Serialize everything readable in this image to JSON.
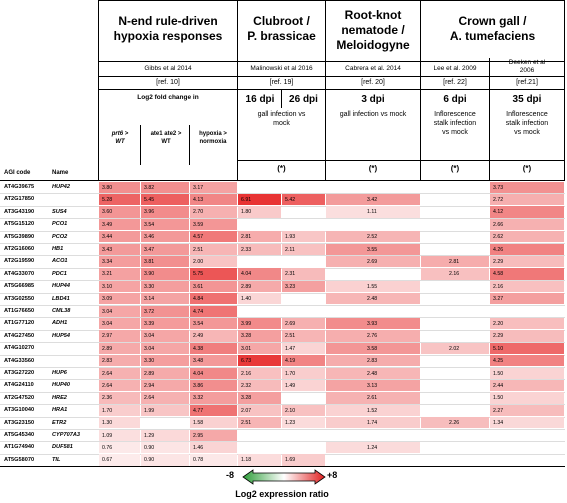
{
  "sections": [
    {
      "title": "N-end rule-driven\nhypoxia responses",
      "citation": "Gibbs et al 2014",
      "ref": "[ref. 10]"
    },
    {
      "title": "Clubroot /\nP. brassicae",
      "citation": "Malinowski et al 2016",
      "ref": "[ref. 19]"
    },
    {
      "title": "Root-knot\nnematode /\nMeloidogyne",
      "citation": "Cabrera et al. 2014",
      "ref": "[ref. 20]"
    },
    {
      "title": "Crown gall /\nA. tumefaciens",
      "citation_a": "Lee et al. 2009",
      "citation_b": "Deeken et al\n2006",
      "ref_a": "[ref. 22]",
      "ref_b": "[ref.21]"
    }
  ],
  "hypoxia": {
    "sublabel": "Log2 fold change in",
    "col1": "prt6 >\nWT",
    "col2": "ate1 ate2 >\nWT",
    "col3": "hypoxia >\nnormoxia"
  },
  "clubroot": {
    "dpi1": "16 dpi",
    "dpi2": "26 dpi",
    "desc": "gall infection vs\nmock"
  },
  "nematode": {
    "dpi": "3 dpi",
    "desc": "gall infection vs mock"
  },
  "crown": {
    "dpi1": "6 dpi",
    "dpi2": "35 dpi",
    "desc1": "Inflorescence\nstalk infection\nvs mock",
    "desc2": "Inflorescence\nstalk infection\nvs mock"
  },
  "star": "(*)",
  "table_header": {
    "code": "AGI code",
    "name": "Name"
  },
  "rows": [
    {
      "code": "AT4G39675",
      "name": "HUP42",
      "v": [
        "3.80",
        "3.82",
        "3.17",
        "",
        "",
        "",
        "",
        "3.73"
      ]
    },
    {
      "code": "AT2G17850",
      "name": "",
      "v": [
        "5.28",
        "5.45",
        "4.13",
        "6.91",
        "5.42",
        "3.42",
        "",
        "2.72"
      ]
    },
    {
      "code": "AT3G43190",
      "name": "SUS4",
      "v": [
        "3.60",
        "3.96",
        "2.70",
        "1.80",
        "",
        "1.11",
        "",
        "4.12"
      ]
    },
    {
      "code": "AT5G15120",
      "name": "PCO1",
      "v": [
        "3.49",
        "3.54",
        "3.59",
        "",
        "",
        "",
        "",
        "2.66"
      ]
    },
    {
      "code": "AT5G39890",
      "name": "PCO2",
      "v": [
        "3.44",
        "3.46",
        "4.57",
        "2.81",
        "1.93",
        "2.52",
        "",
        "2.62"
      ]
    },
    {
      "code": "AT2G16060",
      "name": "HB1",
      "v": [
        "3.43",
        "3.47",
        "2.51",
        "2.33",
        "2.11",
        "3.55",
        "",
        "4.26"
      ]
    },
    {
      "code": "AT2G19590",
      "name": "ACO1",
      "v": [
        "3.34",
        "3.81",
        "2.00",
        "",
        "",
        "2.69",
        "2.81",
        "2.29"
      ]
    },
    {
      "code": "AT4G33070",
      "name": "PDC1",
      "v": [
        "3.21",
        "3.90",
        "5.75",
        "4.04",
        "2.31",
        "",
        "2.16",
        "4.58"
      ]
    },
    {
      "code": "AT5G66985",
      "name": "HUP44",
      "v": [
        "3.10",
        "3.30",
        "3.61",
        "2.89",
        "3.23",
        "1.55",
        "",
        "2.16"
      ]
    },
    {
      "code": "AT3G02550",
      "name": "LBD41",
      "v": [
        "3.09",
        "3.14",
        "4.84",
        "1.40",
        "",
        "2.48",
        "",
        "3.27"
      ]
    },
    {
      "code": "AT1G76650",
      "name": "CML38",
      "v": [
        "3.04",
        "3.72",
        "4.74",
        "",
        "",
        "",
        "",
        ""
      ]
    },
    {
      "code": "AT1G77120",
      "name": "ADH1",
      "v": [
        "3.04",
        "3.39",
        "3.54",
        "3.99",
        "2.69",
        "3.93",
        "",
        "2.20"
      ]
    },
    {
      "code": "AT4G27450",
      "name": "HUP54",
      "v": [
        "2.97",
        "3.04",
        "2.49",
        "3.28",
        "2.51",
        "2.76",
        "",
        "2.29"
      ]
    },
    {
      "code": "AT4G10270",
      "name": "",
      "v": [
        "2.89",
        "3.04",
        "4.38",
        "3.01",
        "1.47",
        "3.58",
        "2.02",
        "5.10"
      ]
    },
    {
      "code": "AT4G33560",
      "name": "",
      "v": [
        "2.83",
        "3.30",
        "3.48",
        "6.73",
        "4.19",
        "2.83",
        "",
        "4.25"
      ]
    },
    {
      "code": "AT3G27220",
      "name": "HUP6",
      "v": [
        "2.64",
        "2.89",
        "4.04",
        "2.16",
        "1.70",
        "2.48",
        "",
        "1.50"
      ]
    },
    {
      "code": "AT4G24110",
      "name": "HUP40",
      "v": [
        "2.64",
        "2.94",
        "3.86",
        "2.32",
        "1.49",
        "3.13",
        "",
        "2.44"
      ]
    },
    {
      "code": "AT2G47520",
      "name": "HRE2",
      "v": [
        "2.36",
        "2.64",
        "3.32",
        "3.28",
        "",
        "2.61",
        "",
        "1.50"
      ]
    },
    {
      "code": "AT3G10040",
      "name": "HRA1",
      "v": [
        "1.70",
        "1.99",
        "4.77",
        "2.07",
        "2.10",
        "1.52",
        "",
        "2.27"
      ]
    },
    {
      "code": "AT3G23150",
      "name": "ETR2",
      "v": [
        "1.30",
        "",
        "1.58",
        "2.51",
        "1.23",
        "1.74",
        "2.26",
        "1.34"
      ]
    },
    {
      "code": "AT5G45340",
      "name": "CYP707A3",
      "v": [
        "1.09",
        "1.29",
        "2.95",
        "",
        "",
        "",
        "",
        ""
      ]
    },
    {
      "code": "AT1G74940",
      "name": "DUF581",
      "v": [
        "0.76",
        "0.90",
        "1.46",
        "",
        "",
        "1.24",
        "",
        ""
      ]
    },
    {
      "code": "AT5G58070",
      "name": "TIL",
      "v": [
        "0.67",
        "0.90",
        "0.78",
        "1.18",
        "1.69",
        "",
        "",
        ""
      ]
    }
  ],
  "legend": {
    "min": "-8",
    "max": "+8",
    "label": "Log2 expression ratio",
    "low_color": "#2e9e3a",
    "high_color": "#e02020"
  }
}
